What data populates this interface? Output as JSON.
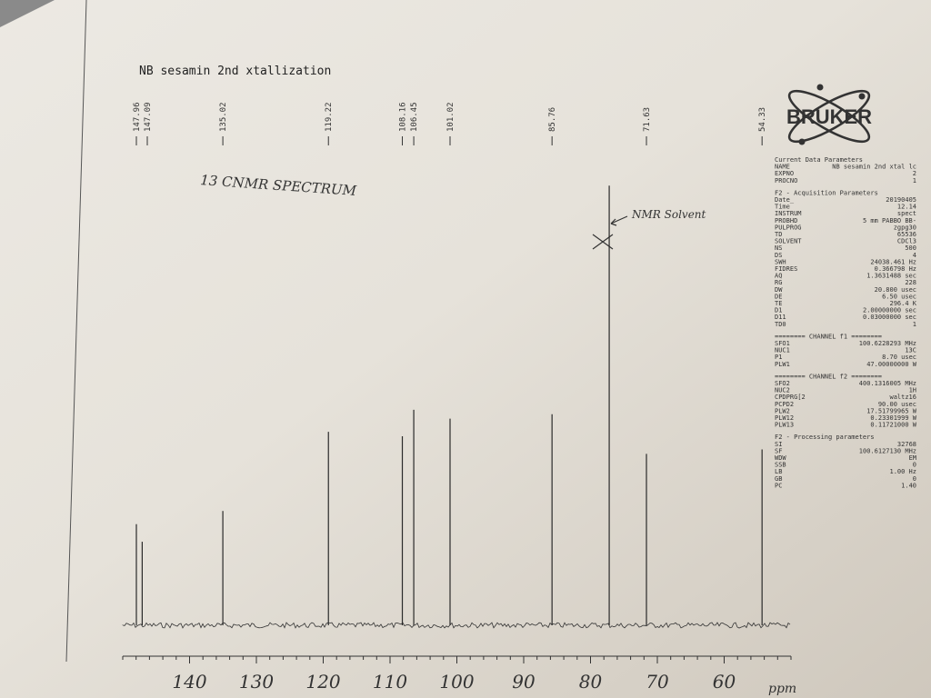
{
  "chart_data": {
    "type": "stem",
    "title": "NB sesamin 2nd xtallization",
    "annotations": [
      "13 CNMR SPECTRUM",
      "NMR Solvent"
    ],
    "x": [
      147.96,
      147.09,
      135.02,
      119.22,
      108.16,
      106.45,
      101.02,
      85.76,
      77.2,
      71.63,
      54.33
    ],
    "peak_labels": [
      147.96,
      147.09,
      135.02,
      119.22,
      108.16,
      106.45,
      101.02,
      85.76,
      null,
      71.63,
      54.33
    ],
    "values": [
      23,
      19,
      26,
      44,
      43,
      49,
      47,
      48,
      100,
      39,
      40
    ],
    "color": "#2a2a2a",
    "xlim": [
      150,
      50
    ],
    "xticks": [
      140,
      130,
      120,
      110,
      100,
      90,
      80,
      70,
      60
    ],
    "xlabel": "ppm",
    "ylim": [
      0,
      105
    ]
  },
  "bruker_panel": {
    "logo": "BRUKER",
    "sections": [
      {
        "title": "Current Data Parameters",
        "rows": [
          [
            "NAME",
            "NB sesamin 2nd xtal lc"
          ],
          [
            "EXPNO",
            "2"
          ],
          [
            "PROCNO",
            "1"
          ]
        ]
      },
      {
        "title": "F2 - Acquisition Parameters",
        "rows": [
          [
            "Date_",
            "20190405"
          ],
          [
            "Time",
            "12.14"
          ],
          [
            "INSTRUM",
            "spect"
          ],
          [
            "PROBHD",
            "5 mm PABBO BB-"
          ],
          [
            "PULPROG",
            "zgpg30"
          ],
          [
            "TD",
            "65536"
          ],
          [
            "SOLVENT",
            "CDCl3"
          ],
          [
            "NS",
            "500"
          ],
          [
            "DS",
            "4"
          ],
          [
            "SWH",
            "24038.461 Hz"
          ],
          [
            "FIDRES",
            "0.366798 Hz"
          ],
          [
            "AQ",
            "1.3631488 sec"
          ],
          [
            "RG",
            "228"
          ],
          [
            "DW",
            "20.800 usec"
          ],
          [
            "DE",
            "6.50 usec"
          ],
          [
            "TE",
            "296.4 K"
          ],
          [
            "D1",
            "2.00000000 sec"
          ],
          [
            "D11",
            "0.03000000 sec"
          ],
          [
            "TD0",
            "1"
          ]
        ]
      },
      {
        "title": "======== CHANNEL f1 ========",
        "rows": [
          [
            "SFO1",
            "100.6228293 MHz"
          ],
          [
            "NUC1",
            "13C"
          ],
          [
            "P1",
            "8.70 usec"
          ],
          [
            "PLW1",
            "47.00000000 W"
          ]
        ]
      },
      {
        "title": "======== CHANNEL f2 ========",
        "rows": [
          [
            "SFO2",
            "400.1316005 MHz"
          ],
          [
            "NUC2",
            "1H"
          ],
          [
            "CPDPRG[2",
            "waltz16"
          ],
          [
            "PCPD2",
            "90.00 usec"
          ],
          [
            "PLW2",
            "17.51799965 W"
          ],
          [
            "PLW12",
            "0.23301999 W"
          ],
          [
            "PLW13",
            "0.11721000 W"
          ]
        ]
      },
      {
        "title": "F2 - Processing parameters",
        "rows": [
          [
            "SI",
            "32768"
          ],
          [
            "SF",
            "100.6127130 MHz"
          ],
          [
            "WDW",
            "EM"
          ],
          [
            "SSB",
            "0"
          ],
          [
            "LB",
            "1.00 Hz"
          ],
          [
            "GB",
            "0"
          ],
          [
            "PC",
            "1.40"
          ]
        ]
      }
    ]
  }
}
